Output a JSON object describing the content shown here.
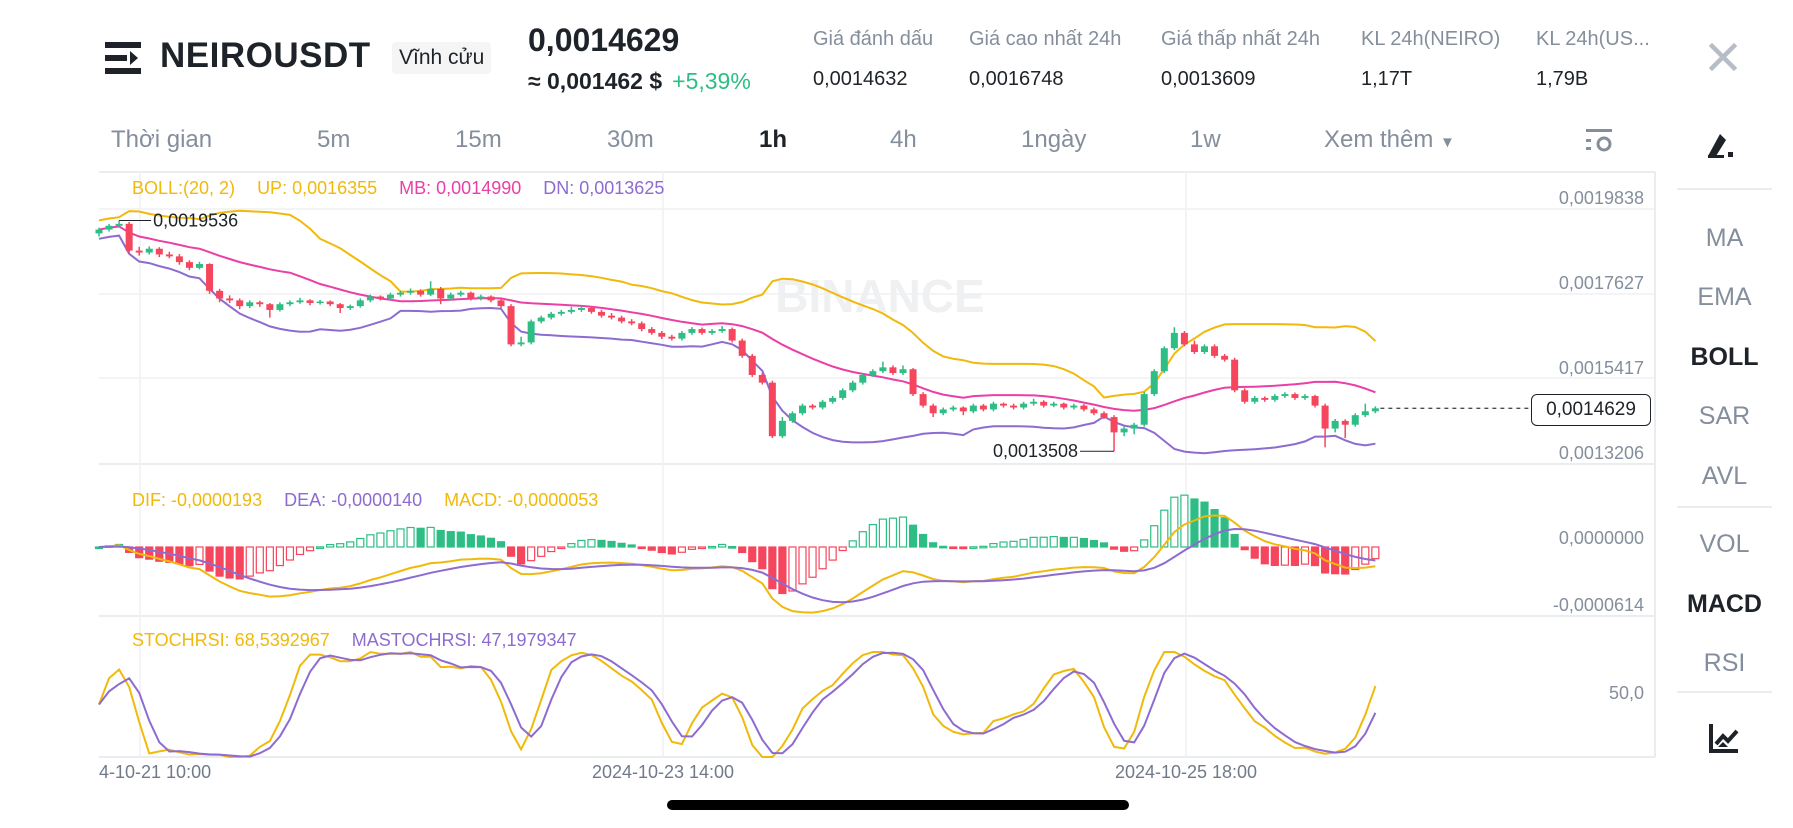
{
  "header": {
    "symbol": "NEIROUSDT",
    "contract_type": "Vĩnh cửu",
    "last_price": "0,0014629",
    "usd_price": "≈ 0,001462 $",
    "change_pct": "+5,39%",
    "stats": [
      {
        "label": "Giá đánh dấu",
        "value": "0,0014632"
      },
      {
        "label": "Giá cao nhất 24h",
        "value": "0,0016748"
      },
      {
        "label": "Giá thấp nhất 24h",
        "value": "0,0013609"
      },
      {
        "label": "KL 24h(NEIRO)",
        "value": "1,17T"
      },
      {
        "label": "KL 24h(US...",
        "value": "1,79B"
      }
    ],
    "close_icon": "x-icon"
  },
  "timeframes": {
    "label": "Thời gian",
    "items": [
      "5m",
      "15m",
      "30m",
      "1h",
      "4h",
      "1ngày",
      "1w"
    ],
    "active": "1h",
    "more": "Xem thêm",
    "settings_icon": "chart-settings-icon"
  },
  "sidebar": {
    "draw_icon": "draw-pen-icon",
    "main_indicators": [
      "MA",
      "EMA",
      "BOLL",
      "SAR",
      "AVL"
    ],
    "sub_indicators": [
      "VOL",
      "MACD",
      "RSI"
    ],
    "active": [
      "BOLL",
      "MACD"
    ],
    "bottom_icon": "indicator-chart-icon"
  },
  "colors": {
    "up": "#2ebd85",
    "down": "#f6465d",
    "boll_up": "#f0b90b",
    "boll_mb": "#ea3fa6",
    "boll_dn": "#8d6bd1",
    "dif": "#f0b90b",
    "dea": "#8d6bd1"
  },
  "legends": {
    "boll": {
      "params": "BOLL:(20, 2)",
      "up": "UP: 0,0016355",
      "mb": "MB: 0,0014990",
      "dn": "DN: 0,0013625"
    },
    "macd": {
      "dif": "DIF: -0,0000193",
      "dea": "DEA: -0,0000140",
      "macd": "MACD: -0,0000053"
    },
    "stochrsi": {
      "k": "STOCHRSI: 68,5392967",
      "d": "MASTOCHRSI: 47,1979347"
    }
  },
  "watermark": "BINANCE",
  "chart_data": {
    "type": "candlestick",
    "interval": "1h",
    "price_axis_ticks": [
      "0,0019838",
      "0,0017627",
      "0,0015417",
      "0,0013206"
    ],
    "macd_axis_ticks": [
      "0,0000000",
      "-0,0000614"
    ],
    "stoch_axis_ticks": [
      "50,0"
    ],
    "time_axis_ticks": [
      "4-10-21 10:00",
      "2024-10-23 14:00",
      "2024-10-25 18:00"
    ],
    "high_marker": "0,0019536",
    "low_marker": "0,0013508",
    "current_price_label": "0,0014629",
    "grid": true,
    "candles_ohlc": [
      [
        0.00192,
        0.001935,
        0.001912,
        0.00193
      ],
      [
        0.00193,
        0.001945,
        0.001925,
        0.00194
      ],
      [
        0.00194,
        0.0019536,
        0.001935,
        0.001945
      ],
      [
        0.001945,
        0.00195,
        0.001868,
        0.001875
      ],
      [
        0.001875,
        0.001885,
        0.001862,
        0.00187
      ],
      [
        0.00187,
        0.001886,
        0.001865,
        0.00188
      ],
      [
        0.00188,
        0.001884,
        0.001858,
        0.001865
      ],
      [
        0.001865,
        0.001872,
        0.001855,
        0.00186
      ],
      [
        0.00186,
        0.001866,
        0.001838,
        0.001845
      ],
      [
        0.001845,
        0.00185,
        0.001824,
        0.00183
      ],
      [
        0.00183,
        0.001846,
        0.001826,
        0.00184
      ],
      [
        0.00184,
        0.001842,
        0.001762,
        0.00177
      ],
      [
        0.00177,
        0.001775,
        0.00174,
        0.00175
      ],
      [
        0.00175,
        0.001758,
        0.001738,
        0.001745
      ],
      [
        0.001745,
        0.00175,
        0.001722,
        0.00173
      ],
      [
        0.00173,
        0.001745,
        0.001725,
        0.00174
      ],
      [
        0.00174,
        0.001744,
        0.001728,
        0.001735
      ],
      [
        0.001735,
        0.001738,
        0.0017,
        0.00172
      ],
      [
        0.00172,
        0.00174,
        0.001716,
        0.001735
      ],
      [
        0.001735,
        0.001745,
        0.00173,
        0.00174
      ],
      [
        0.00174,
        0.001752,
        0.001736,
        0.001745
      ],
      [
        0.001745,
        0.001748,
        0.001732,
        0.001738
      ],
      [
        0.001738,
        0.001746,
        0.001734,
        0.001742
      ],
      [
        0.001742,
        0.001745,
        0.00173,
        0.001735
      ],
      [
        0.001735,
        0.001738,
        0.001712,
        0.001725
      ],
      [
        0.001725,
        0.001734,
        0.00172,
        0.00173
      ],
      [
        0.00173,
        0.00175,
        0.001726,
        0.001745
      ],
      [
        0.001745,
        0.00176,
        0.00174,
        0.001755
      ],
      [
        0.001755,
        0.001758,
        0.001745,
        0.00175
      ],
      [
        0.00175,
        0.001765,
        0.001746,
        0.00176
      ],
      [
        0.00176,
        0.00177,
        0.001755,
        0.001765
      ],
      [
        0.001765,
        0.001776,
        0.00176,
        0.00177
      ],
      [
        0.00177,
        0.001774,
        0.001755,
        0.00176
      ],
      [
        0.00176,
        0.001795,
        0.001756,
        0.001775
      ],
      [
        0.001775,
        0.00178,
        0.001735,
        0.00175
      ],
      [
        0.00175,
        0.001765,
        0.001745,
        0.00176
      ],
      [
        0.00176,
        0.00177,
        0.001755,
        0.001765
      ],
      [
        0.001765,
        0.001768,
        0.001745,
        0.00175
      ],
      [
        0.00175,
        0.00176,
        0.001745,
        0.001755
      ],
      [
        0.001755,
        0.001758,
        0.00174,
        0.001745
      ],
      [
        0.001745,
        0.00175,
        0.001725,
        0.00173
      ],
      [
        0.00173,
        0.001735,
        0.001625,
        0.00163
      ],
      [
        0.00163,
        0.00165,
        0.001625,
        0.001635
      ],
      [
        0.001635,
        0.001695,
        0.00163,
        0.00169
      ],
      [
        0.00169,
        0.001705,
        0.001685,
        0.0017
      ],
      [
        0.0017,
        0.001715,
        0.001695,
        0.00171
      ],
      [
        0.00171,
        0.00172,
        0.001705,
        0.001715
      ],
      [
        0.001715,
        0.001728,
        0.00171,
        0.00172
      ],
      [
        0.00172,
        0.001732,
        0.001715,
        0.001725
      ],
      [
        0.001725,
        0.001728,
        0.00171,
        0.001715
      ],
      [
        0.001715,
        0.00172,
        0.0017,
        0.001705
      ],
      [
        0.001705,
        0.001712,
        0.001695,
        0.0017
      ],
      [
        0.0017,
        0.001705,
        0.001685,
        0.00169
      ],
      [
        0.00169,
        0.001696,
        0.00168,
        0.001685
      ],
      [
        0.001685,
        0.00169,
        0.001664,
        0.00167
      ],
      [
        0.00167,
        0.001675,
        0.001655,
        0.00166
      ],
      [
        0.00166,
        0.001665,
        0.001644,
        0.00165
      ],
      [
        0.00165,
        0.001655,
        0.00164,
        0.001645
      ],
      [
        0.001645,
        0.001665,
        0.00164,
        0.00166
      ],
      [
        0.00166,
        0.001675,
        0.001655,
        0.00167
      ],
      [
        0.00167,
        0.001674,
        0.001655,
        0.00166
      ],
      [
        0.00166,
        0.00167,
        0.001655,
        0.001665
      ],
      [
        0.001665,
        0.001678,
        0.00166,
        0.00167
      ],
      [
        0.00167,
        0.001674,
        0.001635,
        0.00164
      ],
      [
        0.00164,
        0.001645,
        0.001595,
        0.0016
      ],
      [
        0.0016,
        0.001605,
        0.001545,
        0.00155
      ],
      [
        0.00155,
        0.001555,
        0.001525,
        0.00153
      ],
      [
        0.00153,
        0.001535,
        0.001385,
        0.00139
      ],
      [
        0.00139,
        0.00144,
        0.001385,
        0.00143
      ],
      [
        0.00143,
        0.001455,
        0.001425,
        0.00145
      ],
      [
        0.00145,
        0.001475,
        0.001445,
        0.00147
      ],
      [
        0.00147,
        0.001474,
        0.00146,
        0.001465
      ],
      [
        0.001465,
        0.001485,
        0.00146,
        0.00148
      ],
      [
        0.00148,
        0.001495,
        0.001475,
        0.00149
      ],
      [
        0.00149,
        0.001515,
        0.001485,
        0.00151
      ],
      [
        0.00151,
        0.001535,
        0.001505,
        0.00153
      ],
      [
        0.00153,
        0.001555,
        0.001525,
        0.00155
      ],
      [
        0.00155,
        0.001565,
        0.001545,
        0.00156
      ],
      [
        0.00156,
        0.001585,
        0.001555,
        0.00157
      ],
      [
        0.00157,
        0.001575,
        0.00155,
        0.001555
      ],
      [
        0.001555,
        0.001575,
        0.00155,
        0.001565
      ],
      [
        0.001565,
        0.001568,
        0.001495,
        0.0015
      ],
      [
        0.0015,
        0.001505,
        0.001465,
        0.00147
      ],
      [
        0.00147,
        0.001475,
        0.00144,
        0.00145
      ],
      [
        0.00145,
        0.001465,
        0.001445,
        0.00146
      ],
      [
        0.00146,
        0.00147,
        0.001455,
        0.001465
      ],
      [
        0.001465,
        0.001468,
        0.001445,
        0.001455
      ],
      [
        0.001455,
        0.001475,
        0.00145,
        0.00147
      ],
      [
        0.00147,
        0.001474,
        0.001455,
        0.00146
      ],
      [
        0.00146,
        0.00148,
        0.001455,
        0.001475
      ],
      [
        0.001475,
        0.001478,
        0.001465,
        0.00147
      ],
      [
        0.00147,
        0.001475,
        0.00146,
        0.001465
      ],
      [
        0.001465,
        0.00148,
        0.00146,
        0.001475
      ],
      [
        0.001475,
        0.001488,
        0.00147,
        0.00148
      ],
      [
        0.00148,
        0.001484,
        0.001465,
        0.00147
      ],
      [
        0.00147,
        0.00148,
        0.001466,
        0.001475
      ],
      [
        0.001475,
        0.001478,
        0.00146,
        0.001465
      ],
      [
        0.001465,
        0.001475,
        0.00146,
        0.00147
      ],
      [
        0.00147,
        0.001474,
        0.001455,
        0.00146
      ],
      [
        0.00146,
        0.001465,
        0.001445,
        0.00145
      ],
      [
        0.00145,
        0.001455,
        0.001435,
        0.00144
      ],
      [
        0.00144,
        0.001445,
        0.0013508,
        0.0014
      ],
      [
        0.0014,
        0.001415,
        0.00139,
        0.00141
      ],
      [
        0.00141,
        0.001425,
        0.001395,
        0.00142
      ],
      [
        0.00142,
        0.001505,
        0.001415,
        0.0015
      ],
      [
        0.0015,
        0.001565,
        0.001495,
        0.00156
      ],
      [
        0.00156,
        0.001625,
        0.001555,
        0.00162
      ],
      [
        0.00162,
        0.0016748,
        0.001615,
        0.00166
      ],
      [
        0.00166,
        0.001665,
        0.001625,
        0.00163
      ],
      [
        0.00163,
        0.00164,
        0.001605,
        0.00161
      ],
      [
        0.00161,
        0.00163,
        0.001605,
        0.001625
      ],
      [
        0.001625,
        0.00163,
        0.001595,
        0.0016
      ],
      [
        0.0016,
        0.001605,
        0.001585,
        0.00159
      ],
      [
        0.00159,
        0.001595,
        0.001505,
        0.00151
      ],
      [
        0.00151,
        0.001515,
        0.001475,
        0.00148
      ],
      [
        0.00148,
        0.001495,
        0.001475,
        0.00149
      ],
      [
        0.00149,
        0.001494,
        0.00148,
        0.001485
      ],
      [
        0.001485,
        0.0015,
        0.00148,
        0.001495
      ],
      [
        0.001495,
        0.001505,
        0.00149,
        0.0015
      ],
      [
        0.0015,
        0.001504,
        0.001485,
        0.00149
      ],
      [
        0.00149,
        0.0015,
        0.001485,
        0.001495
      ],
      [
        0.001495,
        0.001498,
        0.001465,
        0.00147
      ],
      [
        0.00147,
        0.001475,
        0.0013609,
        0.00141
      ],
      [
        0.00141,
        0.001435,
        0.0014,
        0.00143
      ],
      [
        0.00143,
        0.001434,
        0.001385,
        0.00142
      ],
      [
        0.00142,
        0.00145,
        0.001415,
        0.001445
      ],
      [
        0.001445,
        0.001475,
        0.00144,
        0.001455
      ],
      [
        0.001455,
        0.001468,
        0.00145,
        0.0014629
      ]
    ]
  }
}
